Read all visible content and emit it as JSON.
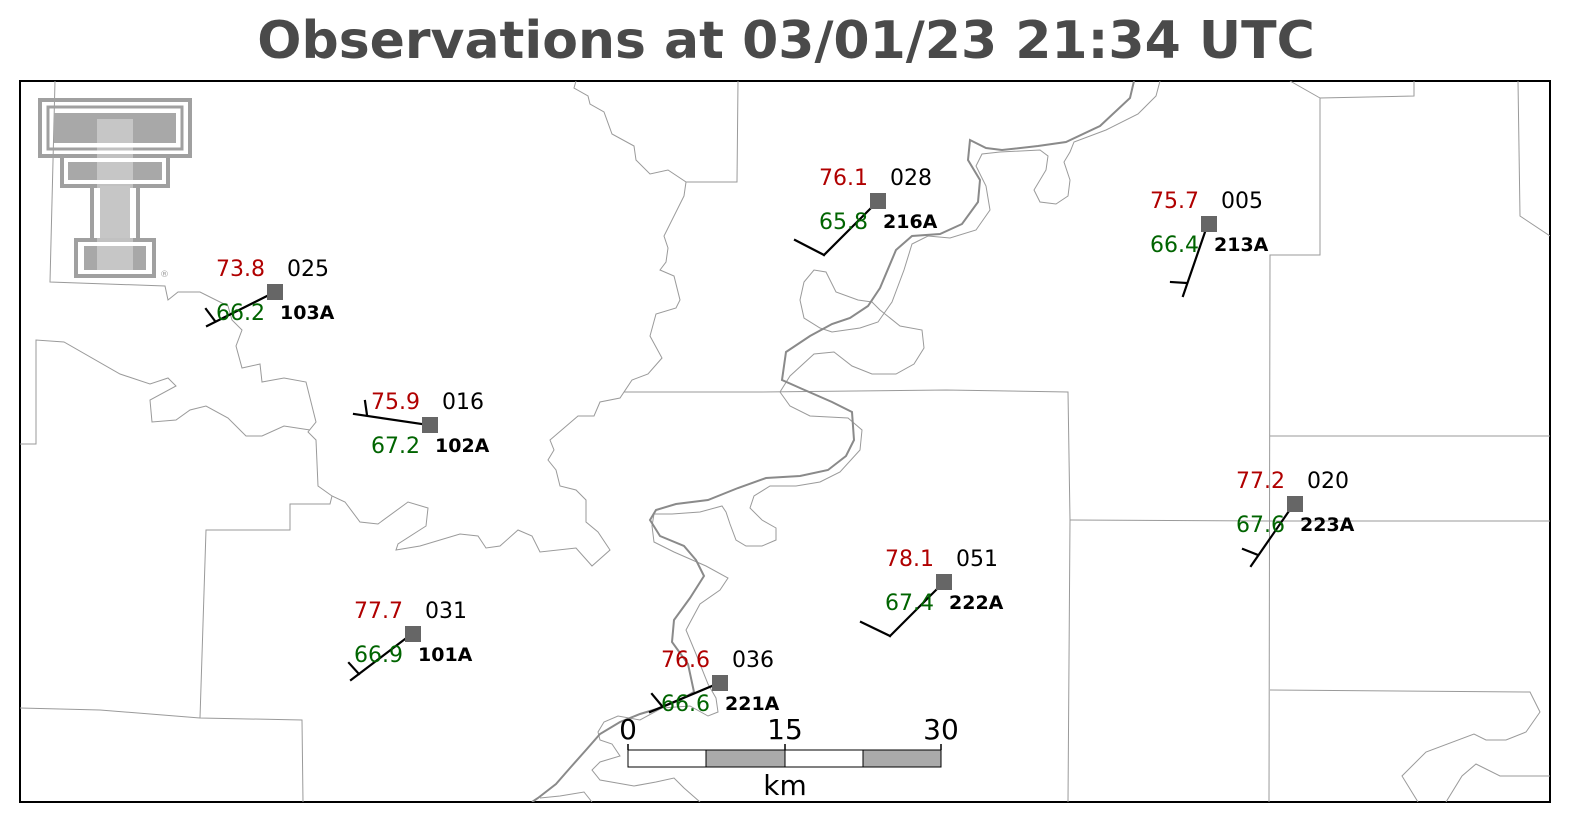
{
  "title": "Observations at 03/01/23 21:34 UTC",
  "colors": {
    "temperature": "#b00000",
    "dewpoint": "#006400",
    "station_marker": "#666666",
    "title": "#4a4a4a",
    "logo": "#a0a0a0"
  },
  "logo": {
    "icon": "texas-tech-double-t-logo",
    "trademark": "®"
  },
  "scale_bar": {
    "labels": [
      "0",
      "15",
      "30"
    ],
    "unit": "km"
  },
  "stations": [
    {
      "id": "103A",
      "temp": "73.8",
      "dewpoint": "66.2",
      "wind_dir": "025"
    },
    {
      "id": "102A",
      "temp": "75.9",
      "dewpoint": "67.2",
      "wind_dir": "016"
    },
    {
      "id": "101A",
      "temp": "77.7",
      "dewpoint": "66.9",
      "wind_dir": "031"
    },
    {
      "id": "221A",
      "temp": "76.6",
      "dewpoint": "66.6",
      "wind_dir": "036"
    },
    {
      "id": "216A",
      "temp": "76.1",
      "dewpoint": "65.8",
      "wind_dir": "028"
    },
    {
      "id": "222A",
      "temp": "78.1",
      "dewpoint": "67.4",
      "wind_dir": "051"
    },
    {
      "id": "213A",
      "temp": "75.7",
      "dewpoint": "66.4",
      "wind_dir": "005"
    },
    {
      "id": "223A",
      "temp": "77.2",
      "dewpoint": "67.6",
      "wind_dir": "020"
    }
  ]
}
